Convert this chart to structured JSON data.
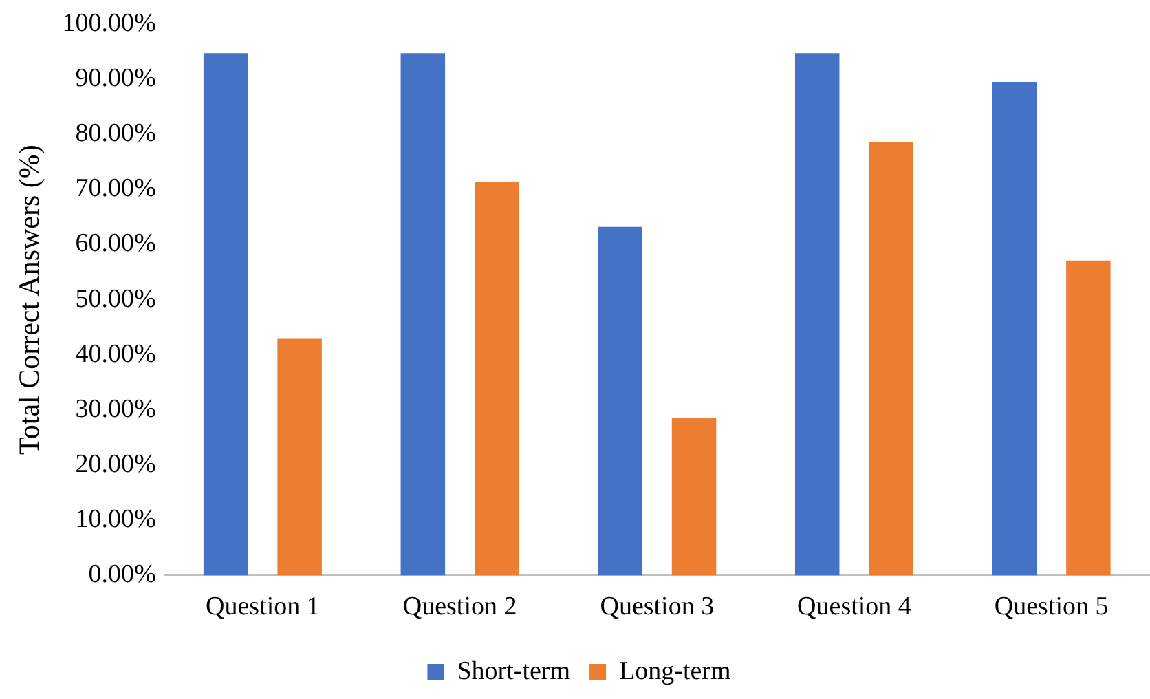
{
  "chart_data": {
    "type": "bar",
    "ylabel": "Total Correct Answers (%)",
    "categories": [
      "Question 1",
      "Question 2",
      "Question 3",
      "Question 4",
      "Question 5"
    ],
    "series": [
      {
        "name": "Short-term",
        "color": "#4472c4",
        "values": [
          94.7,
          94.7,
          63.2,
          94.7,
          89.5
        ]
      },
      {
        "name": "Long-term",
        "color": "#ed7d31",
        "values": [
          42.9,
          71.4,
          28.6,
          78.6,
          57.1
        ]
      }
    ],
    "ylim": [
      0,
      100
    ],
    "yticks": [
      {
        "value": 0,
        "label": "0.00%"
      },
      {
        "value": 10,
        "label": "10.00%"
      },
      {
        "value": 20,
        "label": "20.00%"
      },
      {
        "value": 30,
        "label": "30.00%"
      },
      {
        "value": 40,
        "label": "40.00%"
      },
      {
        "value": 50,
        "label": "50.00%"
      },
      {
        "value": 60,
        "label": "60.00%"
      },
      {
        "value": 70,
        "label": "70.00%"
      },
      {
        "value": 80,
        "label": "80.00%"
      },
      {
        "value": 90,
        "label": "90.00%"
      },
      {
        "value": 100,
        "label": "100.00%"
      }
    ],
    "grid": false,
    "legend": "bottom"
  }
}
